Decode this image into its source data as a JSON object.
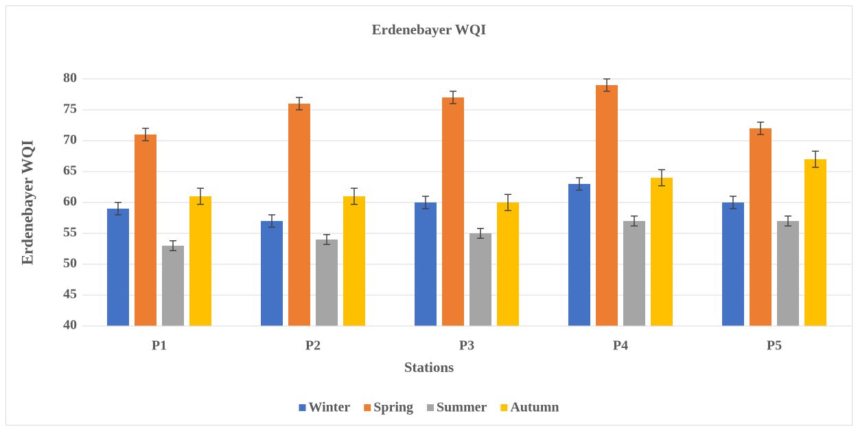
{
  "chart_data": {
    "type": "bar",
    "title": "Erdenebayer WQI",
    "x_label": "Stations",
    "y_label": "Erdenebayer WQI",
    "categories": [
      "P1",
      "P2",
      "P3",
      "P4",
      "P5"
    ],
    "series": [
      {
        "name": "Winter",
        "color": "#4472c4",
        "values": [
          59,
          57,
          60,
          63,
          60
        ],
        "errors": [
          1,
          1,
          1,
          1,
          1
        ]
      },
      {
        "name": "Spring",
        "color": "#ed7d31",
        "values": [
          71,
          76,
          77,
          79,
          72
        ],
        "errors": [
          1,
          1,
          1,
          1,
          1
        ]
      },
      {
        "name": "Summer",
        "color": "#a5a5a5",
        "values": [
          53,
          54,
          55,
          57,
          57
        ],
        "errors": [
          0.8,
          0.8,
          0.8,
          0.8,
          0.8
        ]
      },
      {
        "name": "Autumn",
        "color": "#ffc000",
        "values": [
          61,
          61,
          60,
          64,
          67
        ],
        "errors": [
          1.3,
          1.3,
          1.3,
          1.3,
          1.3
        ]
      }
    ],
    "ylim": [
      40,
      80
    ],
    "yticks": [
      40,
      45,
      50,
      55,
      60,
      65,
      70,
      75,
      80
    ],
    "grid": true,
    "legend": "bottom"
  }
}
